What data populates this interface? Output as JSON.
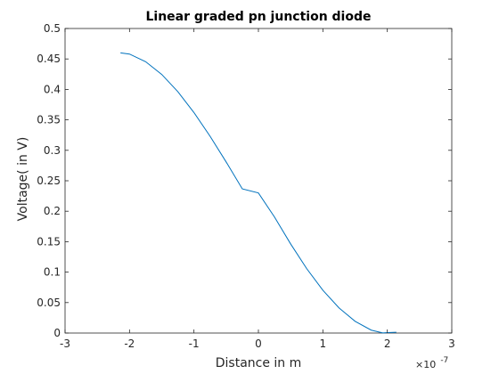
{
  "chart_data": {
    "type": "line",
    "title": "Linear graded pn junction diode",
    "xlabel": "Distance in m",
    "ylabel": "Voltage( in V)",
    "x_multiplier": {
      "base": "×10",
      "exponent": "-7"
    },
    "xlim": [
      -3e-07,
      3e-07
    ],
    "ylim": [
      0,
      0.5
    ],
    "xticks": [
      -3e-07,
      -2e-07,
      -1e-07,
      0,
      1e-07,
      2e-07,
      3e-07
    ],
    "xtick_labels": [
      "-3",
      "-2",
      "-1",
      "0",
      "1",
      "2",
      "3"
    ],
    "yticks": [
      0,
      0.05,
      0.1,
      0.15,
      0.2,
      0.25,
      0.3,
      0.35,
      0.4,
      0.45,
      0.5
    ],
    "ytick_labels": [
      "0",
      "0.05",
      "0.1",
      "0.15",
      "0.2",
      "0.25",
      "0.3",
      "0.35",
      "0.4",
      "0.45",
      "0.5"
    ],
    "grid": false,
    "box": true,
    "series": [
      {
        "color": "#0072bd",
        "x": [
          -2.14e-07,
          -2e-07,
          -1.75e-07,
          -1.5e-07,
          -1.25e-07,
          -1e-07,
          -7.5e-08,
          -5e-08,
          -2.5e-08,
          0,
          2.5e-08,
          5e-08,
          7.5e-08,
          1e-07,
          1.25e-07,
          1.5e-07,
          1.75e-07,
          1.93e-07,
          2e-07,
          2.14e-07
        ],
        "y": [
          0.46,
          0.458,
          0.4455,
          0.4246,
          0.3963,
          0.362,
          0.3231,
          0.2808,
          0.2367,
          0.23,
          0.1904,
          0.1463,
          0.1056,
          0.0702,
          0.0413,
          0.0193,
          0.0048,
          0.0002,
          0.0007,
          0.0012
        ]
      }
    ]
  }
}
